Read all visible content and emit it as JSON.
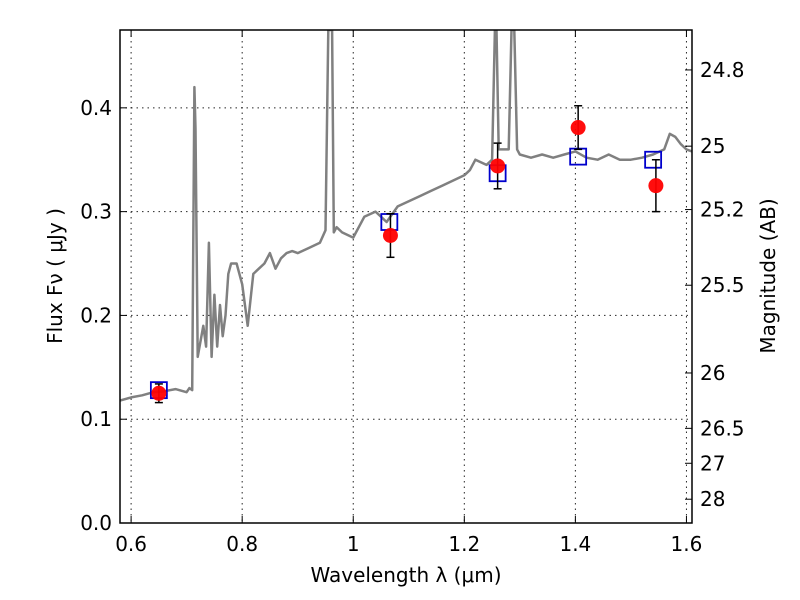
{
  "chart_data": {
    "type": "line",
    "xlabel": "Wavelength  λ (μm)",
    "ylabel": "Flux  Fν  ( μJy )",
    "ylabel_right": "Magnitude (AB)",
    "xlim": [
      0.58,
      1.61
    ],
    "ylim": [
      0.0,
      0.475
    ],
    "grid": true,
    "x_ticks": [
      {
        "value": 0.6,
        "label": "0.6"
      },
      {
        "value": 0.8,
        "label": "0.8"
      },
      {
        "value": 1.0,
        "label": "1"
      },
      {
        "value": 1.2,
        "label": "1.2"
      },
      {
        "value": 1.4,
        "label": "1.4"
      },
      {
        "value": 1.6,
        "label": "1.6"
      }
    ],
    "y_ticks": [
      {
        "value": 0.0,
        "label": "0.0"
      },
      {
        "value": 0.1,
        "label": "0.1"
      },
      {
        "value": 0.2,
        "label": "0.2"
      },
      {
        "value": 0.3,
        "label": "0.3"
      },
      {
        "value": 0.4,
        "label": "0.4"
      }
    ],
    "right_ticks": [
      {
        "mag": 24.8,
        "label": "24.8"
      },
      {
        "mag": 25.0,
        "label": "25"
      },
      {
        "mag": 25.2,
        "label": "25.2"
      },
      {
        "mag": 25.5,
        "label": "25.5"
      },
      {
        "mag": 26.0,
        "label": "26"
      },
      {
        "mag": 26.5,
        "label": "26.5"
      },
      {
        "mag": 27.0,
        "label": "27"
      },
      {
        "mag": 28.0,
        "label": "28"
      }
    ],
    "series": [
      {
        "type": "line",
        "color": "#808080",
        "x": [
          0.58,
          0.6,
          0.62,
          0.64,
          0.66,
          0.68,
          0.7,
          0.705,
          0.71,
          0.714,
          0.716,
          0.72,
          0.73,
          0.735,
          0.74,
          0.745,
          0.75,
          0.755,
          0.76,
          0.765,
          0.77,
          0.775,
          0.78,
          0.79,
          0.8,
          0.81,
          0.82,
          0.83,
          0.84,
          0.85,
          0.86,
          0.87,
          0.88,
          0.89,
          0.9,
          0.92,
          0.94,
          0.95,
          0.955,
          0.958,
          0.962,
          0.965,
          0.97,
          0.98,
          1.0,
          1.02,
          1.04,
          1.06,
          1.08,
          1.1,
          1.12,
          1.14,
          1.16,
          1.18,
          1.2,
          1.21,
          1.22,
          1.24,
          1.25,
          1.255,
          1.258,
          1.262,
          1.27,
          1.28,
          1.285,
          1.29,
          1.295,
          1.3,
          1.32,
          1.34,
          1.36,
          1.38,
          1.4,
          1.42,
          1.44,
          1.46,
          1.48,
          1.5,
          1.52,
          1.54,
          1.56,
          1.57,
          1.58,
          1.59,
          1.6,
          1.61
        ],
        "y": [
          0.118,
          0.121,
          0.123,
          0.126,
          0.127,
          0.129,
          0.126,
          0.13,
          0.128,
          0.42,
          0.38,
          0.16,
          0.19,
          0.17,
          0.27,
          0.16,
          0.22,
          0.17,
          0.21,
          0.18,
          0.2,
          0.24,
          0.25,
          0.25,
          0.23,
          0.19,
          0.24,
          0.245,
          0.25,
          0.26,
          0.245,
          0.255,
          0.26,
          0.262,
          0.26,
          0.265,
          0.27,
          0.282,
          0.475,
          0.475,
          0.475,
          0.28,
          0.285,
          0.28,
          0.275,
          0.295,
          0.3,
          0.29,
          0.305,
          0.31,
          0.315,
          0.32,
          0.325,
          0.33,
          0.335,
          0.34,
          0.35,
          0.345,
          0.35,
          0.475,
          0.475,
          0.36,
          0.36,
          0.36,
          0.475,
          0.475,
          0.36,
          0.355,
          0.352,
          0.355,
          0.352,
          0.355,
          0.358,
          0.352,
          0.35,
          0.355,
          0.35,
          0.35,
          0.352,
          0.355,
          0.36,
          0.375,
          0.372,
          0.365,
          0.36,
          0.358
        ]
      },
      {
        "type": "scatter",
        "marker": "square-open",
        "color": "#0000cc",
        "x": [
          0.65,
          1.065,
          1.26,
          1.405,
          1.54
        ],
        "y": [
          0.128,
          0.29,
          0.337,
          0.353,
          0.35
        ]
      },
      {
        "type": "scatter",
        "marker": "circle",
        "color": "#ff0000",
        "x": [
          0.65,
          1.067,
          1.26,
          1.405,
          1.545
        ],
        "y": [
          0.125,
          0.277,
          0.344,
          0.381,
          0.325
        ],
        "yerr": [
          0.009,
          0.021,
          0.022,
          0.021,
          0.025
        ]
      }
    ]
  }
}
